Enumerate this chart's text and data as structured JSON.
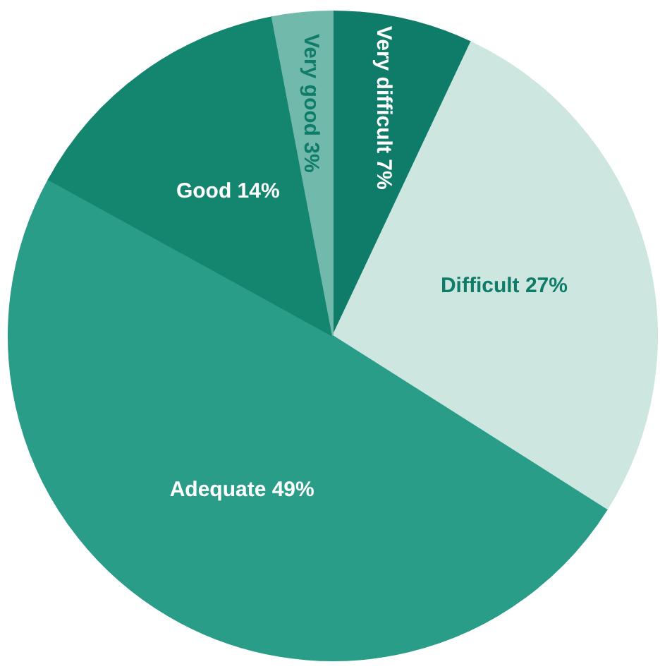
{
  "chart_data": {
    "type": "pie",
    "categories": [
      "Very difficult",
      "Difficult",
      "Adequate",
      "Good",
      "Very good"
    ],
    "values": [
      7,
      27,
      49,
      14,
      3
    ],
    "colors": [
      "#0f7b69",
      "#cde7e0",
      "#2a9d89",
      "#14866f",
      "#70b9ab"
    ],
    "value_labels": [
      "7%",
      "27%",
      "49%",
      "14%",
      "3%"
    ]
  }
}
